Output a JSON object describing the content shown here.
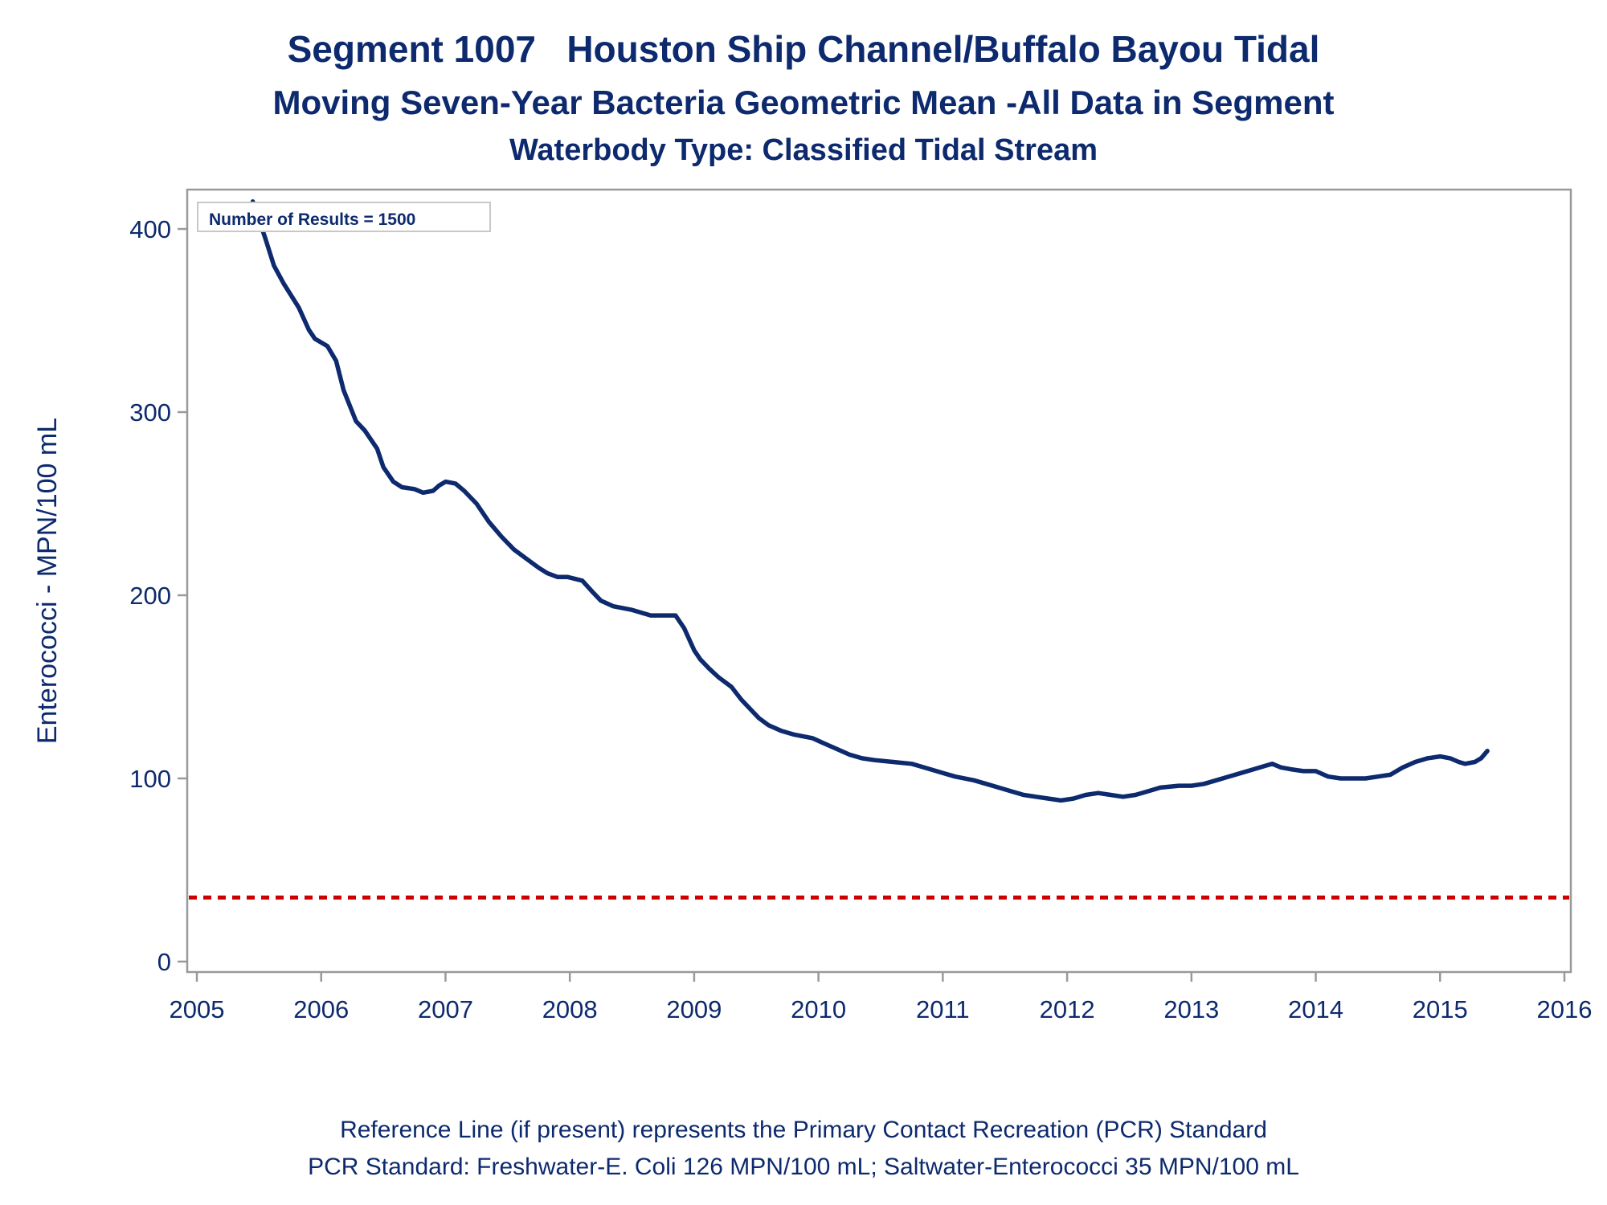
{
  "title_line1": "Segment 1007   Houston Ship Channel/Buffalo Bayou Tidal",
  "title_line2": "Moving Seven-Year Bacteria Geometric Mean -All Data in Segment",
  "title_line3": "Waterbody Type: Classified Tidal Stream",
  "annotation": "Number of Results = 1500",
  "footnote_line1": "Reference Line (if present) represents the Primary Contact Recreation (PCR) Standard",
  "footnote_line2": "PCR Standard: Freshwater-E. Coli 126 MPN/100 mL; Saltwater-Enterococci 35 MPN/100 mL",
  "chart_data": {
    "type": "line",
    "ylabel": "Enterococci - MPN/100 mL",
    "xlabel": "",
    "xlim": [
      2005,
      2016
    ],
    "ylim": [
      -5,
      420
    ],
    "xticks": [
      "2005",
      "2006",
      "2007",
      "2008",
      "2009",
      "2010",
      "2011",
      "2012",
      "2013",
      "2014",
      "2015",
      "2016"
    ],
    "yticks": [
      "0",
      "100",
      "200",
      "300",
      "400"
    ],
    "grid": false,
    "reference_line": {
      "value": 35,
      "color": "#cc0000",
      "style": "dashed"
    },
    "series": [
      {
        "color": "#0d2a6e",
        "x": [
          2005.45,
          2005.55,
          2005.62,
          2005.7,
          2005.82,
          2005.9,
          2005.95,
          2006.05,
          2006.12,
          2006.18,
          2006.28,
          2006.35,
          2006.45,
          2006.5,
          2006.58,
          2006.65,
          2006.75,
          2006.82,
          2006.9,
          2006.95,
          2007.0,
          2007.08,
          2007.15,
          2007.25,
          2007.35,
          2007.45,
          2007.55,
          2007.65,
          2007.75,
          2007.82,
          2007.9,
          2007.98,
          2008.1,
          2008.18,
          2008.25,
          2008.35,
          2008.5,
          2008.65,
          2008.75,
          2008.85,
          2008.92,
          2009.0,
          2009.05,
          2009.12,
          2009.2,
          2009.3,
          2009.38,
          2009.45,
          2009.52,
          2009.6,
          2009.7,
          2009.8,
          2009.95,
          2010.05,
          2010.15,
          2010.25,
          2010.35,
          2010.45,
          2010.6,
          2010.75,
          2010.9,
          2011.0,
          2011.1,
          2011.25,
          2011.35,
          2011.45,
          2011.55,
          2011.65,
          2011.75,
          2011.85,
          2011.95,
          2012.05,
          2012.15,
          2012.25,
          2012.35,
          2012.45,
          2012.55,
          2012.65,
          2012.75,
          2012.9,
          2013.0,
          2013.1,
          2013.2,
          2013.3,
          2013.4,
          2013.5,
          2013.6,
          2013.65,
          2013.72,
          2013.8,
          2013.9,
          2014.0,
          2014.1,
          2014.2,
          2014.3,
          2014.4,
          2014.5,
          2014.6,
          2014.7,
          2014.8,
          2014.9,
          2015.0,
          2015.08,
          2015.15,
          2015.2,
          2015.28,
          2015.33,
          2015.38
        ],
        "values": [
          415,
          395,
          380,
          370,
          357,
          345,
          340,
          336,
          328,
          312,
          295,
          290,
          280,
          270,
          262,
          259,
          258,
          256,
          257,
          260,
          262,
          261,
          257,
          250,
          240,
          232,
          225,
          220,
          215,
          212,
          210,
          210,
          208,
          202,
          197,
          194,
          192,
          189,
          189,
          189,
          182,
          170,
          165,
          160,
          155,
          150,
          143,
          138,
          133,
          129,
          126,
          124,
          122,
          119,
          116,
          113,
          111,
          110,
          109,
          108,
          105,
          103,
          101,
          99,
          97,
          95,
          93,
          91,
          90,
          89,
          88,
          89,
          91,
          92,
          91,
          90,
          91,
          93,
          95,
          96,
          96,
          97,
          99,
          101,
          103,
          105,
          107,
          108,
          106,
          105,
          104,
          104,
          101,
          100,
          100,
          100,
          101,
          102,
          106,
          109,
          111,
          112,
          111,
          109,
          108,
          109,
          111,
          115
        ]
      }
    ]
  }
}
